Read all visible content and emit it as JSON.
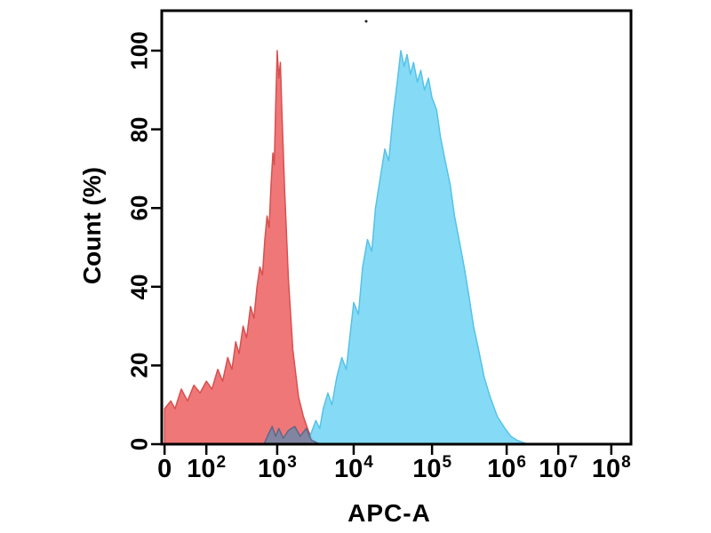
{
  "figure": {
    "background": "#ffffff"
  },
  "chart_data": {
    "type": "area",
    "title": "",
    "xlabel": "APC-A",
    "ylabel": "Count (%)",
    "x_scale": "biexponential-log",
    "ylim": [
      0,
      100
    ],
    "y_ticks": [
      0,
      20,
      40,
      60,
      80,
      100
    ],
    "x_ticks": [
      {
        "label": "0",
        "value": 0,
        "frac": 0.006
      },
      {
        "base": "10",
        "exp": "2",
        "value": 100,
        "frac": 0.095
      },
      {
        "base": "10",
        "exp": "3",
        "value": 1000,
        "frac": 0.246
      },
      {
        "base": "10",
        "exp": "4",
        "value": 10000,
        "frac": 0.409
      },
      {
        "base": "10",
        "exp": "5",
        "value": 100000,
        "frac": 0.576
      },
      {
        "base": "10",
        "exp": "6",
        "value": 1000000,
        "frac": 0.735
      },
      {
        "base": "10",
        "exp": "7",
        "value": 10000000,
        "frac": 0.845
      },
      {
        "base": "10",
        "exp": "8",
        "value": 100000000,
        "frac": 0.958
      }
    ],
    "series": [
      {
        "name": "red-histogram",
        "color": "#ef6b6b",
        "stroke": "#d94f4f",
        "opacity": 0.92,
        "points": [
          [
            0,
            9
          ],
          [
            15,
            11
          ],
          [
            25,
            9
          ],
          [
            40,
            14
          ],
          [
            55,
            11
          ],
          [
            70,
            15
          ],
          [
            85,
            13
          ],
          [
            100,
            16
          ],
          [
            120,
            14
          ],
          [
            145,
            19
          ],
          [
            170,
            16
          ],
          [
            200,
            22
          ],
          [
            230,
            19
          ],
          [
            260,
            26
          ],
          [
            290,
            23
          ],
          [
            330,
            30
          ],
          [
            370,
            27
          ],
          [
            420,
            35
          ],
          [
            470,
            32
          ],
          [
            520,
            40
          ],
          [
            570,
            45
          ],
          [
            620,
            43
          ],
          [
            670,
            52
          ],
          [
            720,
            58
          ],
          [
            770,
            55
          ],
          [
            820,
            66
          ],
          [
            870,
            74
          ],
          [
            910,
            71
          ],
          [
            950,
            85
          ],
          [
            1000,
            100
          ],
          [
            1050,
            93
          ],
          [
            1100,
            97
          ],
          [
            1150,
            85
          ],
          [
            1250,
            65
          ],
          [
            1400,
            42
          ],
          [
            1600,
            24
          ],
          [
            1900,
            12
          ],
          [
            2200,
            7
          ],
          [
            2600,
            3
          ],
          [
            3000,
            1
          ],
          [
            3400,
            0
          ]
        ]
      },
      {
        "name": "blue-histogram",
        "color": "#7ed9f4",
        "stroke": "#55c2e8",
        "opacity": 0.95,
        "points": [
          [
            2500,
            0
          ],
          [
            2800,
            3
          ],
          [
            3200,
            6
          ],
          [
            3600,
            4
          ],
          [
            4000,
            9
          ],
          [
            4600,
            13
          ],
          [
            5200,
            10
          ],
          [
            6000,
            17
          ],
          [
            7000,
            22
          ],
          [
            8000,
            19
          ],
          [
            9000,
            28
          ],
          [
            10000,
            36
          ],
          [
            11500,
            33
          ],
          [
            13000,
            45
          ],
          [
            15000,
            52
          ],
          [
            17000,
            49
          ],
          [
            19000,
            60
          ],
          [
            22000,
            68
          ],
          [
            25000,
            75
          ],
          [
            28000,
            72
          ],
          [
            32000,
            84
          ],
          [
            36000,
            92
          ],
          [
            40000,
            100
          ],
          [
            44000,
            96
          ],
          [
            48000,
            99
          ],
          [
            53000,
            94
          ],
          [
            58000,
            97
          ],
          [
            65000,
            92
          ],
          [
            72000,
            95
          ],
          [
            80000,
            90
          ],
          [
            90000,
            93
          ],
          [
            100000,
            88
          ],
          [
            115000,
            85
          ],
          [
            130000,
            78
          ],
          [
            150000,
            72
          ],
          [
            175000,
            66
          ],
          [
            200000,
            58
          ],
          [
            230000,
            52
          ],
          [
            270000,
            45
          ],
          [
            310000,
            38
          ],
          [
            360000,
            30
          ],
          [
            420000,
            24
          ],
          [
            500000,
            17
          ],
          [
            600000,
            12
          ],
          [
            750000,
            7
          ],
          [
            950000,
            4
          ],
          [
            1200000,
            2
          ],
          [
            1600000,
            1
          ],
          [
            2200000,
            0.3
          ],
          [
            2800000,
            0
          ]
        ]
      },
      {
        "name": "gray-histogram",
        "color": "#7b86a3",
        "stroke": "#5c688a",
        "opacity": 0.95,
        "points": [
          [
            650,
            0
          ],
          [
            750,
            2.5
          ],
          [
            850,
            4.5
          ],
          [
            950,
            2
          ],
          [
            1050,
            4
          ],
          [
            1200,
            1.5
          ],
          [
            1400,
            3.5
          ],
          [
            1700,
            4.5
          ],
          [
            2000,
            2
          ],
          [
            2400,
            4
          ],
          [
            2800,
            1
          ],
          [
            3200,
            0.5
          ],
          [
            3600,
            0
          ]
        ]
      }
    ]
  }
}
